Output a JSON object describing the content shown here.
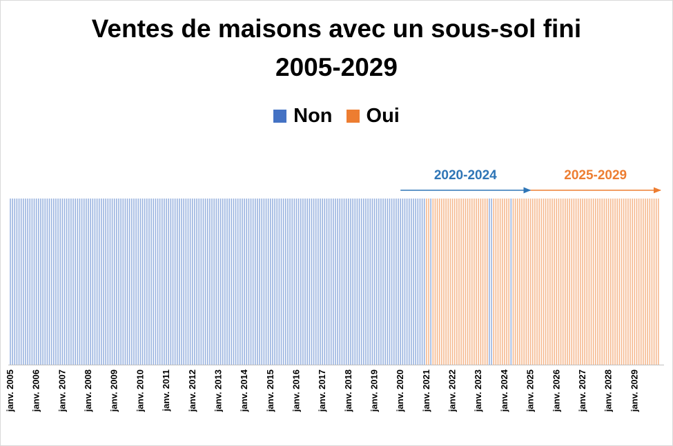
{
  "colors": {
    "non": "#4472c4",
    "oui": "#ed7d31",
    "range_2020_2024": "#2e75b6",
    "range_2025_2029": "#ed7d31",
    "axis": "#bfbfbf",
    "tick_text": "#000000"
  },
  "chart_data": {
    "type": "bar",
    "title_lines": [
      "Ventes de maisons avec un sous-sol fini",
      "2005-2029"
    ],
    "legend_placement": "top-center",
    "series": [
      {
        "name": "Non",
        "color": "#4472c4",
        "from": "2005-01",
        "to": "2020-12",
        "value": 1
      },
      {
        "name": "Oui",
        "color": "#ed7d31",
        "from": "2021-01",
        "to": "2029-12",
        "value": 1
      }
    ],
    "blue_months_2021_2024": [
      "2021-03",
      "2023-06",
      "2023-07",
      "2024-04"
    ],
    "x_ticks": [
      "janv. 2005",
      "janv. 2006",
      "janv. 2007",
      "janv. 2008",
      "janv. 2009",
      "janv. 2010",
      "janv. 2011",
      "janv. 2012",
      "janv. 2013",
      "janv. 2014",
      "janv. 2015",
      "janv. 2016",
      "janv. 2017",
      "janv. 2018",
      "janv. 2019",
      "janv. 2020",
      "janv. 2021",
      "janv. 2022",
      "janv. 2023",
      "janv. 2024",
      "janv. 2025",
      "janv. 2026",
      "janv. 2027",
      "janv. 2028",
      "janv. 2029"
    ],
    "xlim": [
      "2005-01",
      "2029-12"
    ],
    "ylim": [
      0,
      1
    ],
    "grid": false,
    "annotations": [
      {
        "label": "2020-2024",
        "from": "2020-01",
        "to": "2024-12",
        "color": "#2e75b6"
      },
      {
        "label": "2025-2029",
        "from": "2025-01",
        "to": "2029-12",
        "color": "#ed7d31"
      }
    ]
  }
}
